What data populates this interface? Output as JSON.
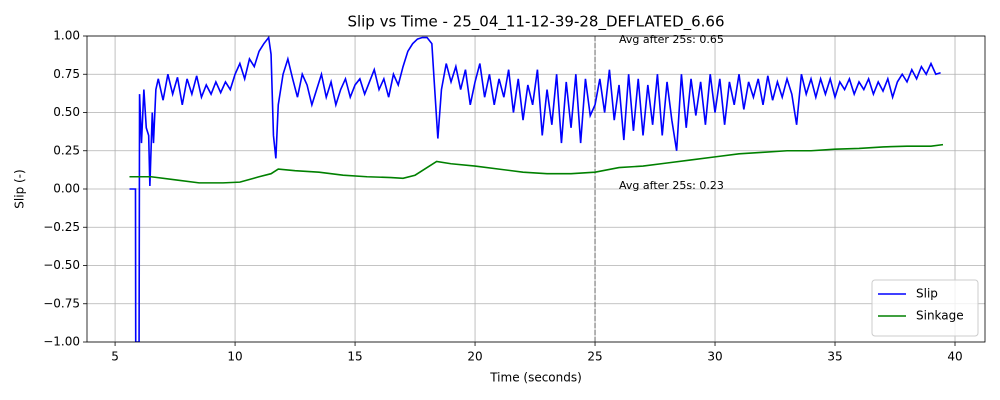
{
  "chart_data": {
    "type": "line",
    "title": "Slip vs Time - 25_04_11-12-39-28_DEFLATED_6.66",
    "x_label": "Time (seconds)",
    "y_label": "Slip (-)",
    "xlim": [
      3.83,
      41.25
    ],
    "ylim": [
      -1,
      1
    ],
    "xticks": [
      5,
      10,
      15,
      20,
      25,
      30,
      35,
      40
    ],
    "yticks": [
      {
        "value": -1,
        "label": "−1.00"
      },
      {
        "value": -0.75,
        "label": "−0.75"
      },
      {
        "value": -0.5,
        "label": "−0.50"
      },
      {
        "value": -0.25,
        "label": "−0.25"
      },
      {
        "value": 0,
        "label": "0.00"
      },
      {
        "value": 0.25,
        "label": "0.25"
      },
      {
        "value": 0.5,
        "label": "0.50"
      },
      {
        "value": 0.75,
        "label": "0.75"
      },
      {
        "value": 1,
        "label": "1.00"
      }
    ],
    "grid": true,
    "legend": "lower right",
    "vline": 25,
    "annotations": [
      "Avg after 25s: 0.65",
      "Avg after 25s: 0.23"
    ],
    "series": [
      {
        "name": "Slip",
        "color": "#0000ff",
        "x": [
          5.6,
          5.85,
          5.86,
          6.0,
          6.02,
          6.1,
          6.2,
          6.3,
          6.4,
          6.45,
          6.55,
          6.6,
          6.7,
          6.8,
          7.0,
          7.2,
          7.4,
          7.6,
          7.8,
          8.0,
          8.2,
          8.4,
          8.6,
          8.8,
          9.0,
          9.2,
          9.4,
          9.6,
          9.8,
          10.0,
          10.2,
          10.4,
          10.6,
          10.8,
          11.0,
          11.2,
          11.4,
          11.5,
          11.6,
          11.7,
          11.8,
          12.0,
          12.2,
          12.4,
          12.6,
          12.8,
          13.0,
          13.2,
          13.4,
          13.6,
          13.8,
          14.0,
          14.2,
          14.4,
          14.6,
          14.8,
          15.0,
          15.2,
          15.4,
          15.6,
          15.8,
          16.0,
          16.2,
          16.4,
          16.6,
          16.8,
          17.0,
          17.2,
          17.4,
          17.6,
          17.8,
          18.0,
          18.2,
          18.3,
          18.45,
          18.6,
          18.8,
          19.0,
          19.2,
          19.4,
          19.6,
          19.8,
          20.0,
          20.2,
          20.4,
          20.6,
          20.8,
          21.0,
          21.2,
          21.4,
          21.6,
          21.8,
          22.0,
          22.2,
          22.4,
          22.6,
          22.8,
          23.0,
          23.2,
          23.4,
          23.6,
          23.8,
          24.0,
          24.2,
          24.4,
          24.6,
          24.8,
          25.0,
          25.2,
          25.4,
          25.6,
          25.8,
          26.0,
          26.2,
          26.4,
          26.6,
          26.8,
          27.0,
          27.2,
          27.4,
          27.6,
          27.8,
          28.0,
          28.2,
          28.4,
          28.6,
          28.8,
          29.0,
          29.2,
          29.4,
          29.6,
          29.8,
          30.0,
          30.2,
          30.4,
          30.6,
          30.8,
          31.0,
          31.2,
          31.4,
          31.6,
          31.8,
          32.0,
          32.2,
          32.4,
          32.6,
          32.8,
          33.0,
          33.2,
          33.4,
          33.6,
          33.8,
          34.0,
          34.2,
          34.4,
          34.6,
          34.8,
          35.0,
          35.2,
          35.4,
          35.6,
          35.8,
          36.0,
          36.2,
          36.4,
          36.6,
          36.8,
          37.0,
          37.2,
          37.4,
          37.6,
          37.8,
          38.0,
          38.2,
          38.4,
          38.6,
          38.8,
          39.0,
          39.2,
          39.4
        ],
        "values": [
          0,
          0,
          -1,
          -1,
          0.62,
          0.3,
          0.65,
          0.4,
          0.35,
          0.02,
          0.5,
          0.3,
          0.65,
          0.72,
          0.58,
          0.75,
          0.62,
          0.73,
          0.55,
          0.72,
          0.62,
          0.74,
          0.6,
          0.68,
          0.62,
          0.7,
          0.63,
          0.7,
          0.65,
          0.75,
          0.82,
          0.72,
          0.85,
          0.8,
          0.9,
          0.95,
          0.99,
          0.88,
          0.35,
          0.2,
          0.55,
          0.75,
          0.85,
          0.72,
          0.6,
          0.75,
          0.68,
          0.55,
          0.65,
          0.75,
          0.6,
          0.7,
          0.55,
          0.65,
          0.72,
          0.6,
          0.68,
          0.72,
          0.62,
          0.7,
          0.78,
          0.65,
          0.72,
          0.6,
          0.75,
          0.68,
          0.8,
          0.9,
          0.95,
          0.98,
          0.99,
          0.99,
          0.95,
          0.7,
          0.33,
          0.65,
          0.82,
          0.7,
          0.8,
          0.65,
          0.78,
          0.55,
          0.7,
          0.82,
          0.6,
          0.75,
          0.55,
          0.72,
          0.6,
          0.78,
          0.5,
          0.72,
          0.45,
          0.68,
          0.55,
          0.78,
          0.35,
          0.65,
          0.42,
          0.75,
          0.3,
          0.7,
          0.4,
          0.75,
          0.3,
          0.72,
          0.48,
          0.55,
          0.72,
          0.5,
          0.78,
          0.45,
          0.68,
          0.32,
          0.75,
          0.38,
          0.72,
          0.35,
          0.68,
          0.42,
          0.75,
          0.35,
          0.7,
          0.45,
          0.25,
          0.75,
          0.4,
          0.72,
          0.48,
          0.7,
          0.42,
          0.75,
          0.5,
          0.72,
          0.42,
          0.7,
          0.55,
          0.75,
          0.52,
          0.7,
          0.6,
          0.72,
          0.55,
          0.74,
          0.58,
          0.7,
          0.6,
          0.72,
          0.62,
          0.42,
          0.75,
          0.62,
          0.72,
          0.6,
          0.72,
          0.62,
          0.72,
          0.6,
          0.7,
          0.65,
          0.72,
          0.62,
          0.7,
          0.65,
          0.72,
          0.62,
          0.7,
          0.64,
          0.72,
          0.6,
          0.7,
          0.75,
          0.7,
          0.78,
          0.72,
          0.8,
          0.75,
          0.82,
          0.75,
          0.76
        ]
      },
      {
        "name": "Sinkage",
        "color": "#008000",
        "x": [
          5.6,
          6.5,
          7.5,
          8.5,
          9.5,
          10.2,
          11.0,
          11.5,
          11.8,
          12.5,
          13.5,
          14.5,
          15.5,
          16.5,
          17.0,
          17.5,
          18.0,
          18.4,
          19.0,
          20.0,
          21.0,
          22.0,
          23.0,
          24.0,
          25.0,
          26.0,
          27.0,
          28.0,
          29.0,
          30.0,
          31.0,
          32.0,
          33.0,
          34.0,
          35.0,
          36.0,
          37.0,
          38.0,
          39.0,
          39.5
        ],
        "values": [
          0.08,
          0.08,
          0.06,
          0.04,
          0.04,
          0.045,
          0.08,
          0.1,
          0.13,
          0.12,
          0.11,
          0.09,
          0.08,
          0.075,
          0.07,
          0.09,
          0.14,
          0.18,
          0.165,
          0.15,
          0.13,
          0.11,
          0.1,
          0.1,
          0.11,
          0.14,
          0.15,
          0.17,
          0.19,
          0.21,
          0.23,
          0.24,
          0.25,
          0.25,
          0.26,
          0.265,
          0.275,
          0.28,
          0.28,
          0.29
        ]
      }
    ]
  }
}
